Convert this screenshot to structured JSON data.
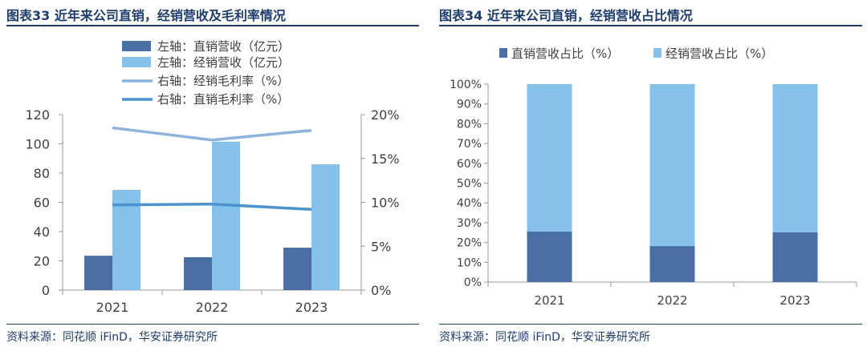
{
  "left_panel": {
    "title": "图表33 近年来公司直销，经销营收及毛利率情况",
    "source": "资料来源：同花顺 iFinD，华安证券研究所"
  },
  "right_panel": {
    "title": "图表34 近年来公司直销，经销营收占比情况",
    "source": "资料来源：同花顺 iFinD，华安证券研究所"
  },
  "colors": {
    "dark_blue": "#4a6fa5",
    "light_blue": "#85c1ea",
    "line_light": "#8eb4dc",
    "line_dark": "#4a93cf",
    "title": "#1f3d6b"
  },
  "chart_data": [
    {
      "type": "bar",
      "categories": [
        "2021",
        "2022",
        "2023"
      ],
      "series": [
        {
          "name": "左轴：直销营收（亿元）",
          "values": [
            23.5,
            22.5,
            29
          ],
          "axis": "left",
          "kind": "bar"
        },
        {
          "name": "左轴：经销营收（亿元）",
          "values": [
            68.5,
            101.5,
            86
          ],
          "axis": "left",
          "kind": "bar"
        },
        {
          "name": "右轴：经销毛利率（%）",
          "values": [
            18.5,
            17.1,
            18.2
          ],
          "axis": "right",
          "kind": "line"
        },
        {
          "name": "右轴：直销毛利率（%）",
          "values": [
            9.7,
            9.8,
            9.2
          ],
          "axis": "right",
          "kind": "line"
        }
      ],
      "ylim_left": [
        0,
        120
      ],
      "yticks_left": [
        "0",
        "20",
        "40",
        "60",
        "80",
        "100",
        "120"
      ],
      "ylim_right": [
        0,
        20
      ],
      "yticks_right": [
        "0%",
        "5%",
        "10%",
        "15%",
        "20%"
      ],
      "legend_position": "top-center"
    },
    {
      "type": "bar",
      "stacked": true,
      "categories": [
        "2021",
        "2022",
        "2023"
      ],
      "series": [
        {
          "name": "直销营收占比（%）",
          "values": [
            25.5,
            18.2,
            25.2
          ]
        },
        {
          "name": "经销营收占比（%）",
          "values": [
            74.5,
            81.8,
            74.8
          ]
        }
      ],
      "ylim": [
        0,
        100
      ],
      "yticks": [
        "0%",
        "10%",
        "20%",
        "30%",
        "40%",
        "50%",
        "60%",
        "70%",
        "80%",
        "90%",
        "100%"
      ],
      "legend_position": "top-center"
    }
  ]
}
